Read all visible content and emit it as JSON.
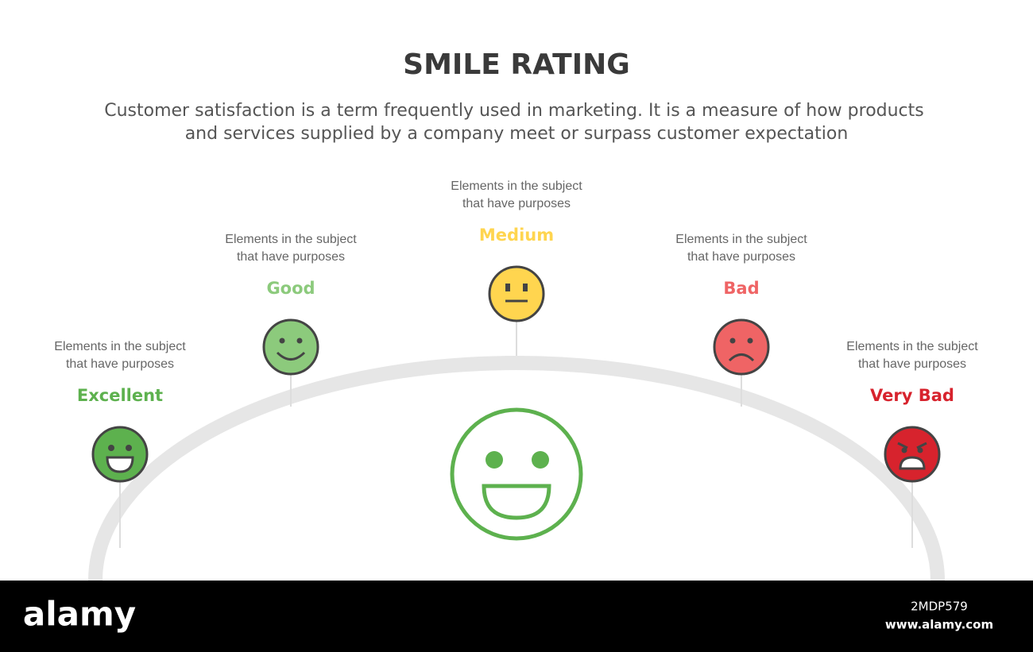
{
  "header": {
    "title": "SMILE RATING",
    "subtitle": [
      "Customer satisfaction is a term frequently used in marketing. It is a measure of how products",
      "and services supplied by a company meet or surpass customer expectation"
    ]
  },
  "ratings": [
    {
      "label": "Excellent",
      "description": [
        "Elements in the subject",
        "that have purposes"
      ]
    },
    {
      "label": "Good",
      "description": [
        "Elements in the subject",
        "that have purposes"
      ]
    },
    {
      "label": "Medium",
      "description": [
        "Elements in the subject",
        "that have purposes"
      ]
    },
    {
      "label": "Bad",
      "description": [
        "Elements in the subject",
        "that have purposes"
      ]
    },
    {
      "label": "Very Bad",
      "description": [
        "Elements in the subject",
        "that have purposes"
      ]
    }
  ],
  "watermark": {
    "brand": "alamy",
    "image_id": "2MDP579",
    "url": "www.alamy.com"
  }
}
